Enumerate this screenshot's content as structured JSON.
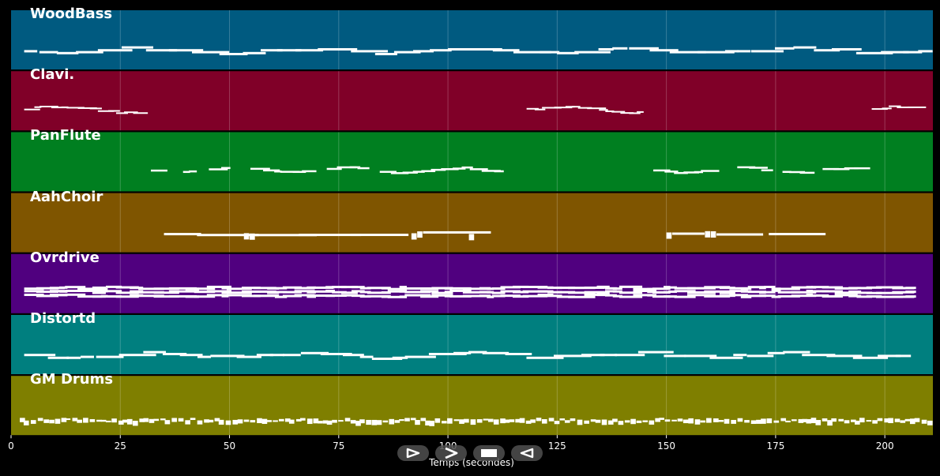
{
  "chart_data": {
    "type": "piano-roll",
    "xlabel": "Temps (secondes)",
    "xlim": [
      0,
      211
    ],
    "x_ticks": [
      "0",
      "25",
      "50",
      "75",
      "100",
      "125",
      "150",
      "175",
      "200"
    ],
    "x_tick_values": [
      0,
      25,
      50,
      75,
      100,
      125,
      150,
      175,
      200
    ],
    "grid": true,
    "tracks": [
      {
        "name": "WoodBass",
        "color": "#005a80",
        "segments": [
          [
            3,
            211
          ]
        ],
        "style": "bass"
      },
      {
        "name": "Clavi.",
        "color": "#800028",
        "segments": [
          [
            3,
            32
          ],
          [
            118,
            147
          ],
          [
            197,
            211
          ]
        ],
        "style": "melody"
      },
      {
        "name": "PanFlute",
        "color": "#007f20",
        "segments": [
          [
            32,
            117
          ],
          [
            147,
            197
          ]
        ],
        "style": "sparse"
      },
      {
        "name": "AahChoir",
        "color": "#7f5500",
        "segments": [
          [
            35,
            117
          ],
          [
            150,
            197
          ]
        ],
        "style": "chords"
      },
      {
        "name": "Ovrdrive",
        "color": "#50007f",
        "segments": [
          [
            3,
            211
          ]
        ],
        "style": "dense"
      },
      {
        "name": "Distortd",
        "color": "#007f7f",
        "segments": [
          [
            3,
            211
          ]
        ],
        "style": "bass"
      },
      {
        "name": "GM Drums",
        "color": "#7f7f00",
        "segments": [
          [
            2,
            211
          ]
        ],
        "style": "drums"
      }
    ]
  },
  "controls": [
    {
      "name": "play-button",
      "icon": "play-icon"
    },
    {
      "name": "forward-button",
      "icon": "chevron-right-icon"
    },
    {
      "name": "stop-button",
      "icon": "stop-icon"
    },
    {
      "name": "rewind-button",
      "icon": "reverse-play-icon"
    }
  ]
}
